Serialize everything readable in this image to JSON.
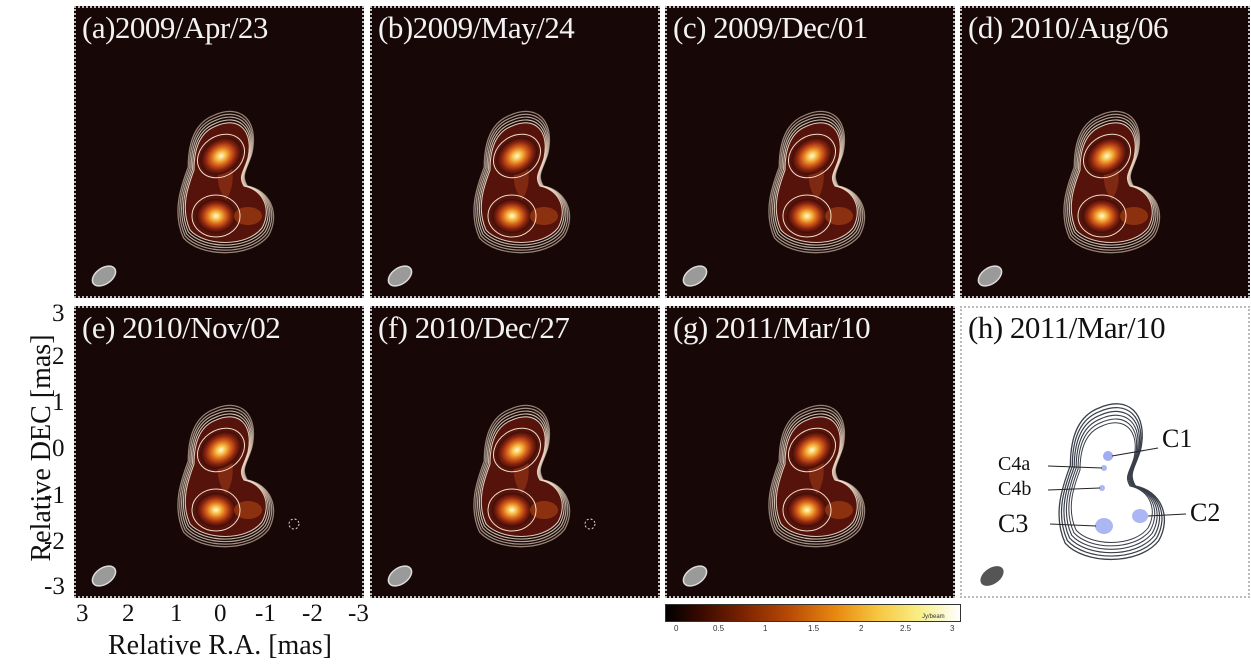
{
  "panels": [
    {
      "label": "(a)2009/Apr/23"
    },
    {
      "label": "(b)2009/May/24"
    },
    {
      "label": "(c) 2009/Dec/01"
    },
    {
      "label": "(d) 2010/Aug/06"
    },
    {
      "label": "(e) 2010/Nov/02"
    },
    {
      "label": "(f) 2010/Dec/27"
    },
    {
      "label": "(g) 2011/Mar/10"
    },
    {
      "label": "(h) 2011/Mar/10"
    }
  ],
  "axes": {
    "y_label": "Relative DEC [mas]",
    "x_label": "Relative R.A. [mas]",
    "y_ticks": [
      "3",
      "2",
      "1",
      "0",
      "-1",
      "-2",
      "-3"
    ],
    "x_ticks": [
      "3",
      "2",
      "1",
      "0",
      "-1",
      "-2",
      "-3"
    ]
  },
  "colorbar": {
    "ticks": [
      "0",
      "0.5",
      "1",
      "1.5",
      "2",
      "2.5",
      "3"
    ],
    "unit": "Jy/beam"
  },
  "components": {
    "c1": "C1",
    "c2": "C2",
    "c3": "C3",
    "c4a": "C4a",
    "c4b": "C4b"
  },
  "colors": {
    "background": "#170706",
    "contour": "#f0dcc8",
    "beam": "#9a9a9a",
    "component_marker": "#8899ee"
  }
}
